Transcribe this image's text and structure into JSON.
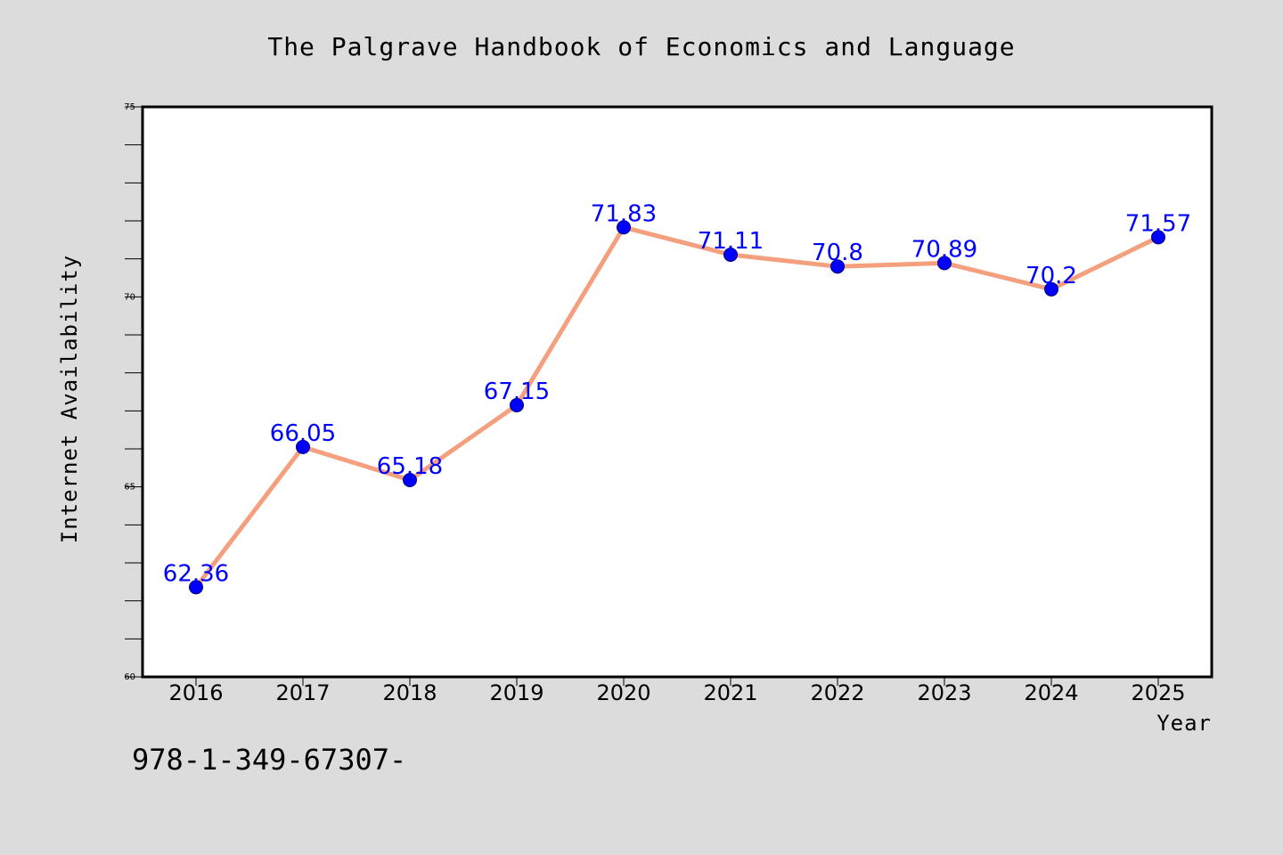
{
  "chart_data": {
    "type": "line",
    "title": "The Palgrave Handbook of Economics and Language",
    "xlabel": "Year",
    "ylabel": "Internet Availability",
    "categories": [
      "2016",
      "2017",
      "2018",
      "2019",
      "2020",
      "2021",
      "2022",
      "2023",
      "2024",
      "2025"
    ],
    "values": [
      62.36,
      66.05,
      65.18,
      67.15,
      71.83,
      71.11,
      70.8,
      70.89,
      70.2,
      71.57
    ],
    "data_labels": [
      "62.36",
      "66.05",
      "65.18",
      "67.15",
      "71.83",
      "71.11",
      "70.8",
      "70.89",
      "70.2",
      "71.57"
    ],
    "ylim": [
      60,
      75
    ],
    "y_major_ticks": [
      "60",
      "65",
      "70",
      "75"
    ],
    "y_minor_step": 1,
    "grid": false,
    "legend": false,
    "line_color": "#f4a07f",
    "marker_color": "#0000ff",
    "label_color": "#0000ff",
    "background_color": "#dcdcdc",
    "plot_background": "#ffffff"
  },
  "footer": {
    "isbn": "978-1-349-67307-"
  }
}
